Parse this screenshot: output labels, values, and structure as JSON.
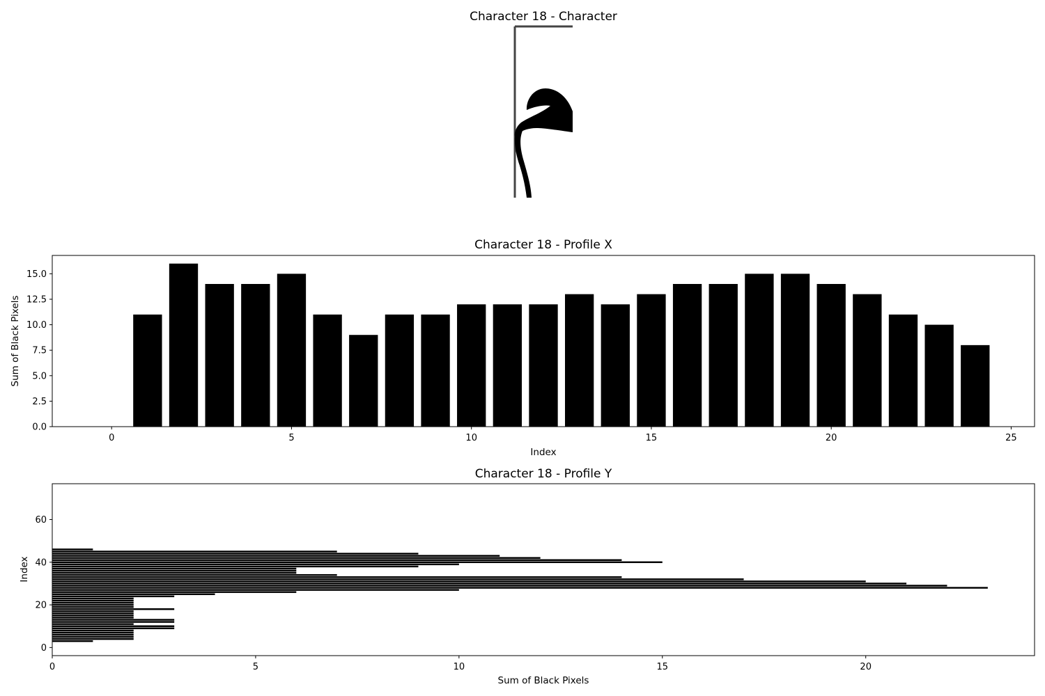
{
  "chart_data": [
    {
      "type": "image",
      "title": "Character 18 - Character"
    },
    {
      "type": "bar",
      "title": "Character 18 - Profile X",
      "xlabel": "Index",
      "ylabel": "Sum of Black Pixels",
      "xlim": [
        -1.65,
        25.65
      ],
      "ylim": [
        0,
        16.8
      ],
      "xticks": [
        "0",
        "5",
        "10",
        "15",
        "20",
        "25"
      ],
      "yticks": [
        "0.0",
        "2.5",
        "5.0",
        "7.5",
        "10.0",
        "12.5",
        "15.0"
      ],
      "grid": false,
      "x": [
        0,
        1,
        2,
        3,
        4,
        5,
        6,
        7,
        8,
        9,
        10,
        11,
        12,
        13,
        14,
        15,
        16,
        17,
        18,
        19,
        20,
        21,
        22,
        23,
        24,
        25
      ],
      "values": [
        0,
        11,
        16,
        14,
        14,
        15,
        11,
        9,
        11,
        11,
        12,
        12,
        12,
        13,
        12,
        13,
        14,
        14,
        15,
        15,
        14,
        13,
        11,
        10,
        8,
        0
      ]
    },
    {
      "type": "barh",
      "title": "Character 18 - Profile Y",
      "xlabel": "Sum of Black Pixels",
      "ylabel": "Index",
      "xlim": [
        0,
        24.15
      ],
      "ylim": [
        -3.8,
        76.8
      ],
      "xticks": [
        "0",
        "5",
        "10",
        "15",
        "20"
      ],
      "yticks": [
        "0",
        "20",
        "40",
        "60"
      ],
      "grid": false,
      "y": [
        0,
        1,
        2,
        3,
        4,
        5,
        6,
        7,
        8,
        9,
        10,
        11,
        12,
        13,
        14,
        15,
        16,
        17,
        18,
        19,
        20,
        21,
        22,
        23,
        24,
        25,
        26,
        27,
        28,
        29,
        30,
        31,
        32,
        33,
        34,
        35,
        36,
        37,
        38,
        39,
        40,
        41,
        42,
        43,
        44,
        45,
        46,
        47,
        48,
        49,
        50,
        51,
        52,
        53,
        54,
        55,
        56,
        57,
        58,
        59,
        60,
        61,
        62,
        63,
        64,
        65,
        66,
        67,
        68,
        69,
        70,
        71,
        72,
        73
      ],
      "values": [
        0,
        0,
        0,
        1,
        2,
        2,
        2,
        2,
        2,
        3,
        3,
        2,
        3,
        3,
        2,
        2,
        2,
        2,
        3,
        2,
        2,
        2,
        2,
        2,
        3,
        4,
        6,
        10,
        23,
        22,
        21,
        20,
        17,
        14,
        7,
        6,
        6,
        6,
        9,
        10,
        15,
        14,
        12,
        11,
        9,
        7,
        1,
        0,
        0,
        0,
        0,
        0,
        0,
        0,
        0,
        0,
        0,
        0,
        0,
        0,
        0,
        0,
        0,
        0,
        0,
        0,
        0,
        0,
        0,
        0,
        0,
        0,
        0,
        0
      ]
    }
  ]
}
